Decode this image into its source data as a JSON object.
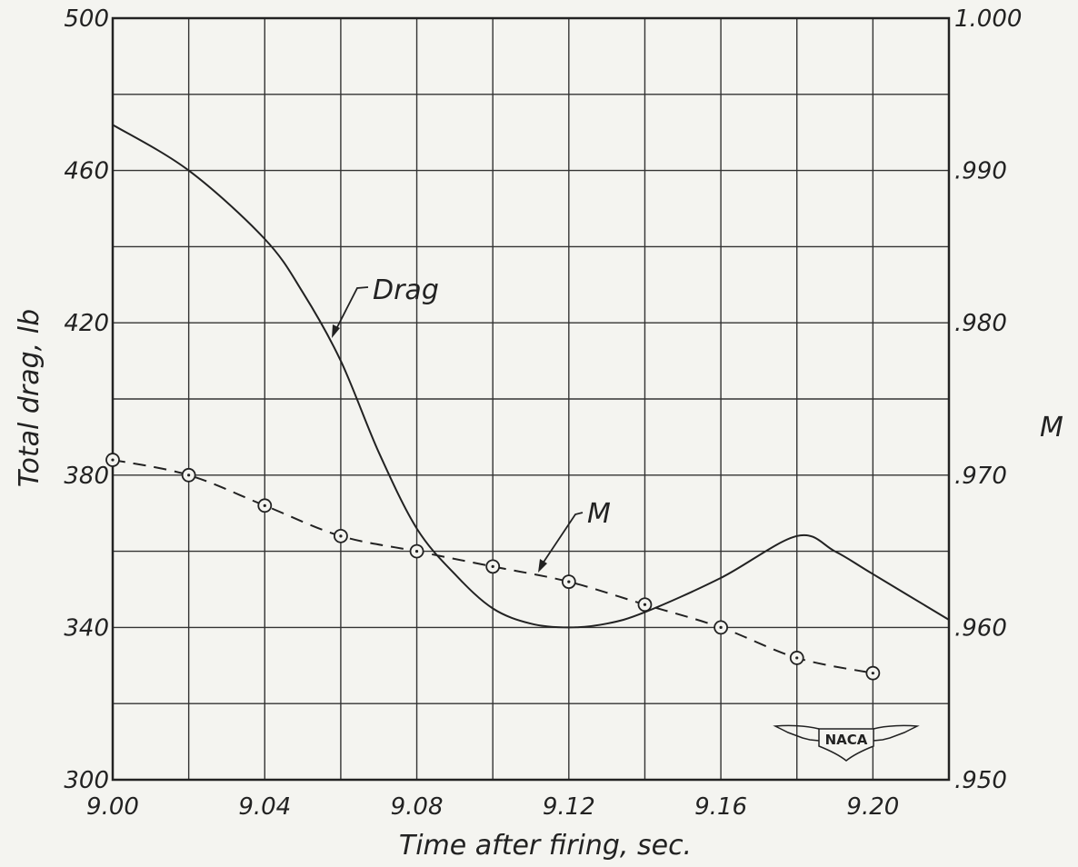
{
  "chart_data": {
    "type": "line",
    "title": "",
    "xlabel": "Time after firing, sec.",
    "ylabel": "Total drag, lb",
    "y2label": "M",
    "xlim": [
      9.0,
      9.22
    ],
    "ylim": [
      300,
      500
    ],
    "y2lim": [
      0.95,
      1.0
    ],
    "x_ticks": [
      "9.00",
      "9.04",
      "9.08",
      "9.12",
      "9.16",
      "9.20"
    ],
    "x_tick_values": [
      9.0,
      9.04,
      9.08,
      9.12,
      9.16,
      9.2
    ],
    "y_ticks": [
      "300",
      "340",
      "380",
      "420",
      "460",
      "500"
    ],
    "y_tick_values": [
      300,
      340,
      380,
      420,
      460,
      500
    ],
    "y2_ticks": [
      ".950",
      ".960",
      ".970",
      ".980",
      ".990",
      "1.000"
    ],
    "y2_tick_values": [
      0.95,
      0.96,
      0.97,
      0.98,
      0.99,
      1.0
    ],
    "grid": true,
    "series": [
      {
        "name": "Drag",
        "axis": "left",
        "style": "solid",
        "x": [
          9.0,
          9.02,
          9.04,
          9.05,
          9.06,
          9.07,
          9.08,
          9.09,
          9.1,
          9.11,
          9.12,
          9.13,
          9.14,
          9.16,
          9.18,
          9.19,
          9.2,
          9.22
        ],
        "y": [
          472,
          460,
          442,
          428,
          410,
          386,
          366,
          354,
          345,
          341,
          340,
          341,
          344,
          353,
          364,
          360,
          354,
          342
        ]
      },
      {
        "name": "M",
        "axis": "right",
        "style": "dashed",
        "markers": "circle",
        "x": [
          9.0,
          9.02,
          9.04,
          9.06,
          9.08,
          9.1,
          9.12,
          9.14,
          9.16,
          9.18,
          9.2
        ],
        "y": [
          0.971,
          0.97,
          0.968,
          0.966,
          0.965,
          0.964,
          0.963,
          0.9615,
          0.96,
          0.958,
          0.957
        ]
      }
    ],
    "annotations": [
      {
        "text": "Drag",
        "series": "Drag"
      },
      {
        "text": "M",
        "series": "M"
      }
    ]
  },
  "logo": {
    "text": "NACA"
  },
  "colors": {
    "ink": "#222222",
    "grid": "#333333",
    "background": "#f4f4f0"
  }
}
